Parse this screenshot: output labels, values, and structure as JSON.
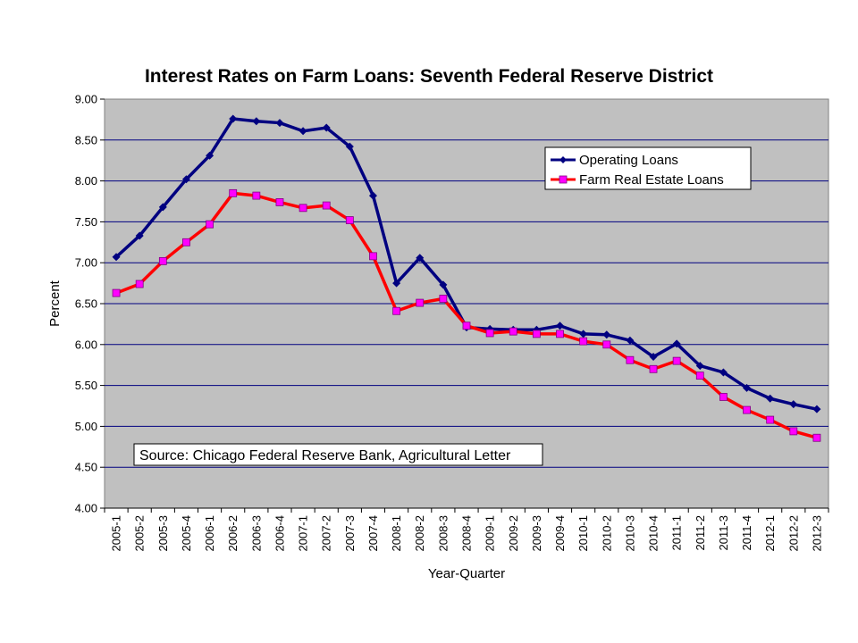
{
  "chart_data": {
    "type": "line",
    "title": "Interest Rates on Farm Loans: Seventh Federal Reserve District",
    "xlabel": "Year-Quarter",
    "ylabel": "Percent",
    "ylim": [
      4.0,
      9.0
    ],
    "yticks": [
      "4.00",
      "4.50",
      "5.00",
      "5.50",
      "6.00",
      "6.50",
      "7.00",
      "7.50",
      "8.00",
      "8.50",
      "9.00"
    ],
    "grid": true,
    "legend_position": "top-right",
    "categories": [
      "2005-1",
      "2005-2",
      "2005-3",
      "2005-4",
      "2006-1",
      "2006-2",
      "2006-3",
      "2006-4",
      "2007-1",
      "2007-2",
      "2007-3",
      "2007-4",
      "2008-1",
      "2008-2",
      "2008-3",
      "2008-4",
      "2009-1",
      "2009-2",
      "2009-3",
      "2009-4",
      "2010-1",
      "2010-2",
      "2010-3",
      "2010-4",
      "2011-1",
      "2011-2",
      "2011-3",
      "2011-4",
      "2012-1",
      "2012-2",
      "2012-3"
    ],
    "series": [
      {
        "name": "Operating Loans",
        "color": "#000080",
        "marker": "diamond",
        "values": [
          7.07,
          7.33,
          7.68,
          8.02,
          8.31,
          8.76,
          8.73,
          8.71,
          8.61,
          8.65,
          8.42,
          7.82,
          6.75,
          7.06,
          6.73,
          6.21,
          6.19,
          6.18,
          6.18,
          6.23,
          6.13,
          6.12,
          6.05,
          5.85,
          6.01,
          5.74,
          5.66,
          5.47,
          5.34,
          5.27,
          5.21
        ]
      },
      {
        "name": "Farm Real Estate Loans",
        "color": "#ff0000",
        "marker_color": "#ff00ff",
        "marker": "square",
        "values": [
          6.63,
          6.74,
          7.02,
          7.25,
          7.47,
          7.85,
          7.82,
          7.74,
          7.67,
          7.7,
          7.52,
          7.08,
          6.41,
          6.51,
          6.56,
          6.23,
          6.14,
          6.16,
          6.13,
          6.13,
          6.04,
          6.0,
          5.81,
          5.7,
          5.8,
          5.62,
          5.36,
          5.2,
          5.08,
          4.94,
          4.86
        ]
      }
    ],
    "note": "Source: Chicago Federal Reserve Bank, Agricultural Letter"
  },
  "colors": {
    "plot_background": "#c0c0c0",
    "gridline": "#000080"
  }
}
